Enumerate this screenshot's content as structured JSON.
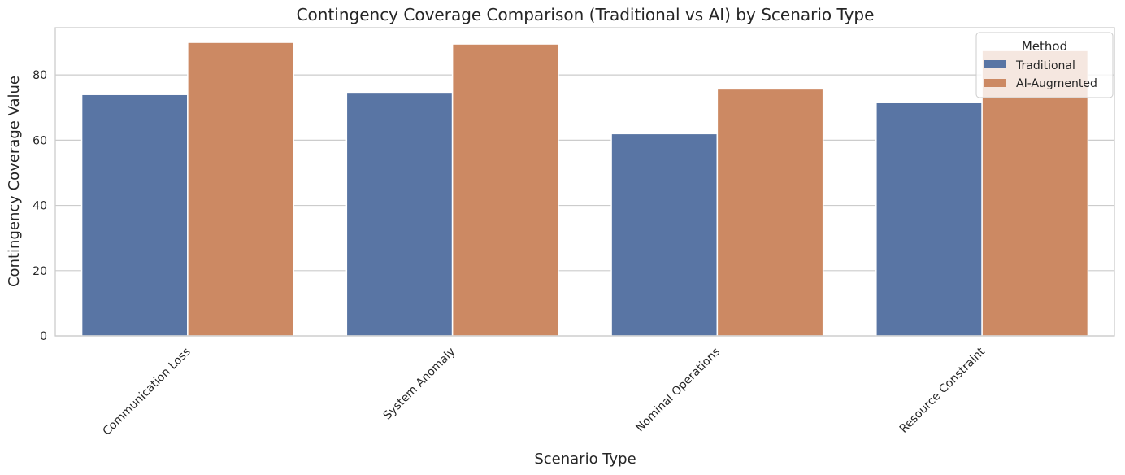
{
  "chart_data": {
    "type": "bar",
    "title": "Contingency Coverage Comparison (Traditional vs AI) by Scenario Type",
    "xlabel": "Scenario Type",
    "ylabel": "Contingency Coverage Value",
    "categories": [
      "Communication Loss",
      "System Anomaly",
      "Nominal Operations",
      "Resource Constraint"
    ],
    "series": [
      {
        "name": "Traditional",
        "values": [
          74.0,
          74.7,
          62.0,
          71.5
        ],
        "color": "#5975a4"
      },
      {
        "name": "AI-Augmented",
        "values": [
          90.0,
          89.5,
          75.7,
          87.5
        ],
        "color": "#cc8963"
      }
    ],
    "ylim": [
      0,
      94.5
    ],
    "yticks": [
      0,
      20,
      40,
      60,
      80
    ],
    "grid": true,
    "legend": {
      "title": "Method",
      "position": "top-right"
    },
    "colors": {
      "grid": "#cccccc",
      "frame": "#cccccc",
      "text": "#262626"
    }
  }
}
